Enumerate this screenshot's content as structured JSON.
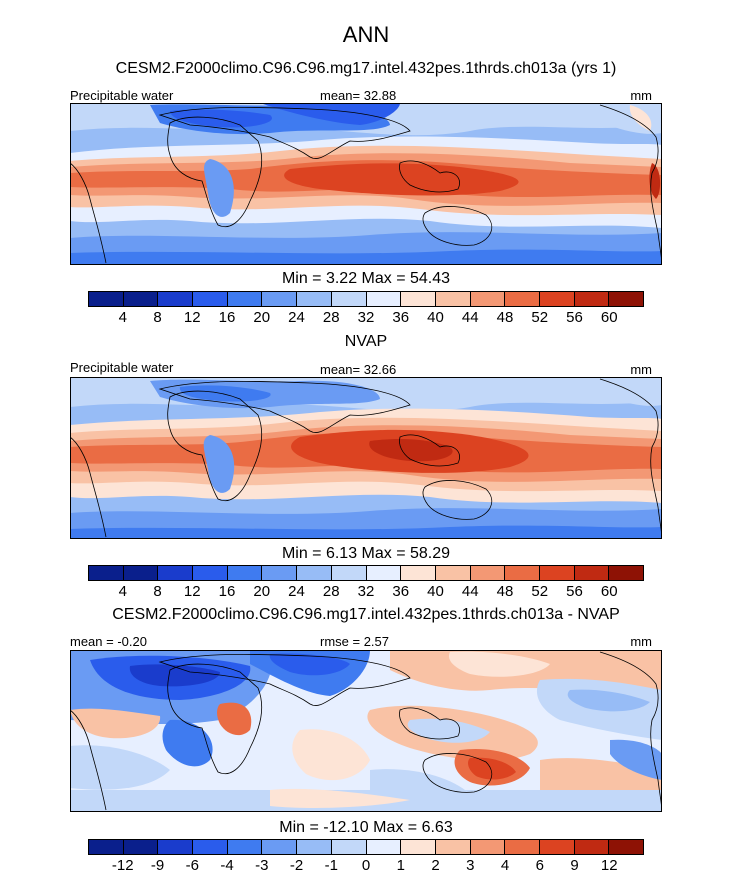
{
  "header": {
    "title": "ANN",
    "model_title": "CESM2.F2000climo.C96.C96.mg17.intel.432pes.1thrds.ch013a (yrs 1)"
  },
  "colors": {
    "abs_palette": [
      "#0a1f8c",
      "#1a3ccc",
      "#2a5cec",
      "#3f7bf0",
      "#6a9bf3",
      "#97bcf6",
      "#c2d8f9",
      "#e7efff",
      "#fde4d6",
      "#f9c2a5",
      "#f39874",
      "#ea6c44",
      "#dc4321",
      "#c02a12",
      "#8e1205"
    ],
    "diff_palette": [
      "#0a1f8c",
      "#1a3ccc",
      "#2a5cec",
      "#3f7bf0",
      "#6a9bf3",
      "#97bcf6",
      "#c2d8f9",
      "#e7efff",
      "#fde4d6",
      "#f9c2a5",
      "#f39874",
      "#ea6c44",
      "#dc4321",
      "#c02a12",
      "#8e1205"
    ]
  },
  "panels": [
    {
      "title": "",
      "left_label": "Precipitable water",
      "center_label": "mean=  32.88",
      "right_label": "mm",
      "minmax": "Min =   3.22 Max =  54.43",
      "ticks": [
        "4",
        "8",
        "12",
        "16",
        "20",
        "24",
        "28",
        "32",
        "36",
        "40",
        "44",
        "48",
        "52",
        "56",
        "60"
      ]
    },
    {
      "title": "NVAP",
      "left_label": "Precipitable water",
      "center_label": "mean=  32.66",
      "right_label": "mm",
      "minmax": "Min =   6.13 Max =  58.29",
      "ticks": [
        "4",
        "8",
        "12",
        "16",
        "20",
        "24",
        "28",
        "32",
        "36",
        "40",
        "44",
        "48",
        "52",
        "56",
        "60"
      ]
    },
    {
      "title": "CESM2.F2000climo.C96.C96.mg17.intel.432pes.1thrds.ch013a - NVAP",
      "left_label": "mean =  -0.20",
      "center_label": "rmse =    2.57",
      "right_label": "mm",
      "minmax": "Min = -12.10 Max =   6.63",
      "ticks": [
        "-12",
        "-9",
        "-6",
        "-4",
        "-3",
        "-2",
        "-1",
        "0",
        "1",
        "2",
        "3",
        "4",
        "6",
        "9",
        "12"
      ]
    }
  ],
  "chart_data": [
    {
      "type": "heatmap",
      "title": "ANN",
      "subtitle": "CESM2.F2000climo.C96.C96.mg17.intel.432pes.1thrds.ch013a (yrs 1)",
      "variable": "Precipitable water",
      "units": "mm",
      "mean": 32.88,
      "min": 3.22,
      "max": 54.43,
      "colorbar_levels": [
        4,
        8,
        12,
        16,
        20,
        24,
        28,
        32,
        36,
        40,
        44,
        48,
        52,
        56,
        60
      ]
    },
    {
      "type": "heatmap",
      "title": "NVAP",
      "variable": "Precipitable water",
      "units": "mm",
      "mean": 32.66,
      "min": 6.13,
      "max": 58.29,
      "colorbar_levels": [
        4,
        8,
        12,
        16,
        20,
        24,
        28,
        32,
        36,
        40,
        44,
        48,
        52,
        56,
        60
      ]
    },
    {
      "type": "heatmap",
      "title": "CESM2.F2000climo.C96.C96.mg17.intel.432pes.1thrds.ch013a - NVAP",
      "units": "mm",
      "mean": -0.2,
      "rmse": 2.57,
      "min": -12.1,
      "max": 6.63,
      "colorbar_levels": [
        -12,
        -9,
        -6,
        -4,
        -3,
        -2,
        -1,
        0,
        1,
        2,
        3,
        4,
        6,
        9,
        12
      ]
    }
  ]
}
